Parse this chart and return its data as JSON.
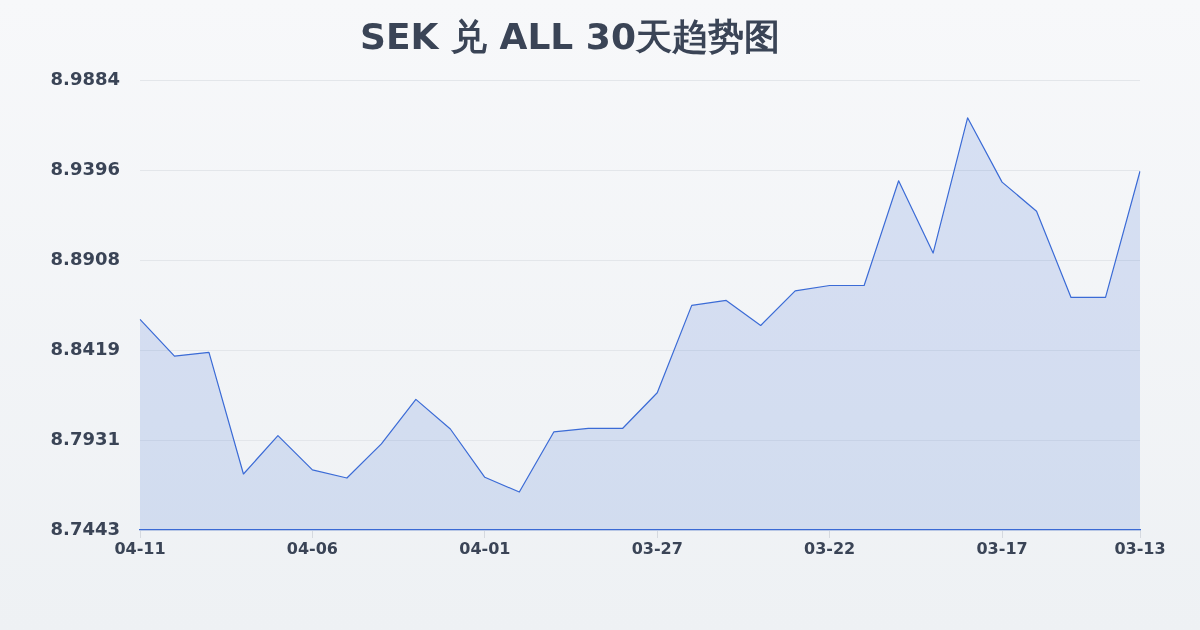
{
  "chart_data": {
    "type": "area",
    "title": "SEK 兑 ALL 30天趋势图",
    "categories": [
      "04-11",
      null,
      null,
      null,
      null,
      "04-06",
      null,
      null,
      null,
      null,
      "04-01",
      null,
      null,
      null,
      null,
      "03-27",
      null,
      null,
      null,
      null,
      "03-22",
      null,
      null,
      null,
      null,
      "03-17",
      null,
      null,
      null,
      "03-13"
    ],
    "values": [
      8.8586,
      8.8387,
      8.8407,
      8.7747,
      8.7955,
      8.7769,
      8.7725,
      8.791,
      8.8152,
      8.7991,
      8.7729,
      8.7649,
      8.7975,
      8.7995,
      8.7995,
      8.8188,
      8.8662,
      8.8689,
      8.8553,
      8.8741,
      8.877,
      8.877,
      8.9338,
      8.8946,
      8.968,
      8.9331,
      8.9173,
      8.8705,
      8.8705,
      8.939
    ],
    "color": "#3b6bd6",
    "ylim": [
      8.7443,
      8.9884
    ],
    "yticks": [
      8.7443,
      8.7931,
      8.8419,
      8.8908,
      8.9396,
      8.9884
    ],
    "grid": "y"
  }
}
